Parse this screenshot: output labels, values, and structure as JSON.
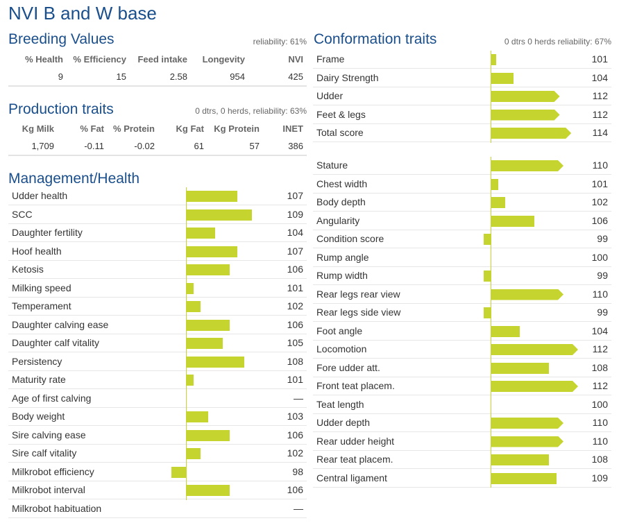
{
  "page_title": "NVI B and W base",
  "breeding_values": {
    "title": "Breeding Values",
    "meta": "reliability: 61%",
    "headers": [
      "% Health",
      "% Efficiency",
      "Feed intake",
      "Longevity",
      "NVI"
    ],
    "values": [
      "9",
      "15",
      "2.58",
      "954",
      "425"
    ]
  },
  "production": {
    "title": "Production traits",
    "meta": "0 dtrs, 0 herds, reliability: 63%",
    "headers": [
      "Kg Milk",
      "% Fat",
      "% Protein",
      "Kg Fat",
      "Kg Protein",
      "INET"
    ],
    "values": [
      "1,709",
      "-0.11",
      "-0.02",
      "61",
      "57",
      "386"
    ]
  },
  "management": {
    "title": "Management/Health",
    "rows": [
      {
        "label": "Udder health",
        "value": "107"
      },
      {
        "label": "SCC",
        "value": "109"
      },
      {
        "label": "Daughter fertility",
        "value": "104"
      },
      {
        "label": "Hoof health",
        "value": "107"
      },
      {
        "label": "Ketosis",
        "value": "106"
      },
      {
        "label": "Milking speed",
        "value": "101"
      },
      {
        "label": "Temperament",
        "value": "102"
      },
      {
        "label": "Daughter calving ease",
        "value": "106"
      },
      {
        "label": "Daughter calf vitality",
        "value": "105"
      },
      {
        "label": "Persistency",
        "value": "108"
      },
      {
        "label": "Maturity rate",
        "value": "101"
      },
      {
        "label": "Age of first calving",
        "value": "—"
      },
      {
        "label": "Body weight",
        "value": "103"
      },
      {
        "label": "Sire calving ease",
        "value": "106"
      },
      {
        "label": "Sire calf vitality",
        "value": "102"
      },
      {
        "label": "Milkrobot efficiency",
        "value": "98"
      },
      {
        "label": "Milkrobot interval",
        "value": "106"
      },
      {
        "label": "Milkrobot habituation",
        "value": "—"
      }
    ]
  },
  "conformation": {
    "title": "Conformation traits",
    "meta": "0 dtrs 0 herds reliability: 67%",
    "summary_rows": [
      {
        "label": "Frame",
        "value": "101"
      },
      {
        "label": "Dairy Strength",
        "value": "104"
      },
      {
        "label": "Udder",
        "value": "112"
      },
      {
        "label": "Feet & legs",
        "value": "112"
      },
      {
        "label": "Total score",
        "value": "114"
      }
    ],
    "detail_rows": [
      {
        "label": "Stature",
        "value": "110"
      },
      {
        "label": "Chest width",
        "value": "101"
      },
      {
        "label": "Body depth",
        "value": "102"
      },
      {
        "label": "Angularity",
        "value": "106"
      },
      {
        "label": "Condition score",
        "value": "99"
      },
      {
        "label": "Rump angle",
        "value": "100"
      },
      {
        "label": "Rump width",
        "value": "99"
      },
      {
        "label": "Rear legs rear view",
        "value": "110"
      },
      {
        "label": "Rear legs side view",
        "value": "99"
      },
      {
        "label": "Foot angle",
        "value": "104"
      },
      {
        "label": "Locomotion",
        "value": "112"
      },
      {
        "label": "Fore udder att.",
        "value": "108"
      },
      {
        "label": "Front teat placem.",
        "value": "112"
      },
      {
        "label": "Teat length",
        "value": "100"
      },
      {
        "label": "Udder depth",
        "value": "110"
      },
      {
        "label": "Rear udder height",
        "value": "110"
      },
      {
        "label": "Rear teat placem.",
        "value": "108"
      },
      {
        "label": "Central ligament",
        "value": "109"
      }
    ]
  },
  "colors": {
    "accent": "#1a4f8c",
    "bar": "#c6d42f"
  }
}
